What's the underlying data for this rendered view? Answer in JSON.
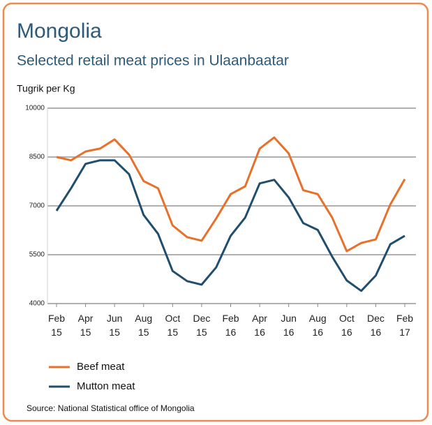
{
  "chart_data": {
    "type": "line",
    "title": "Mongolia",
    "subtitle": "Selected retail meat prices in Ulaanbaatar",
    "y_label": "Tugrik per Kg",
    "source": "Source: National Statistical office of Mongolia",
    "categories": [
      "Feb 15",
      null,
      "Apr 15",
      null,
      "Jun 15",
      null,
      "Aug 15",
      null,
      "Oct 15",
      null,
      "Dec 15",
      null,
      "Feb 16",
      null,
      "Apr 16",
      null,
      "Jun 16",
      null,
      "Aug 16",
      null,
      "Oct 16",
      null,
      "Dec 16",
      null,
      "Feb 17"
    ],
    "series": [
      {
        "name": "Beef meat",
        "color": "#e8702a",
        "values": [
          8500,
          8400,
          8670,
          8760,
          9040,
          8570,
          7760,
          7540,
          6400,
          6040,
          5930,
          6610,
          7360,
          7600,
          8760,
          9100,
          8610,
          7480,
          7360,
          6640,
          5610,
          5860,
          5970,
          7040,
          7820
        ]
      },
      {
        "name": "Mutton meat",
        "color": "#1f4e6e",
        "values": [
          6850,
          7540,
          8290,
          8400,
          8400,
          7970,
          6720,
          6140,
          5000,
          4690,
          4580,
          5110,
          6080,
          6640,
          7690,
          7800,
          7260,
          6470,
          6260,
          5440,
          4710,
          4390,
          4860,
          5820,
          6080
        ]
      }
    ],
    "ylim": [
      4000,
      10000
    ],
    "yticks": [
      4000,
      5500,
      7000,
      8500,
      10000
    ],
    "grid": true
  }
}
